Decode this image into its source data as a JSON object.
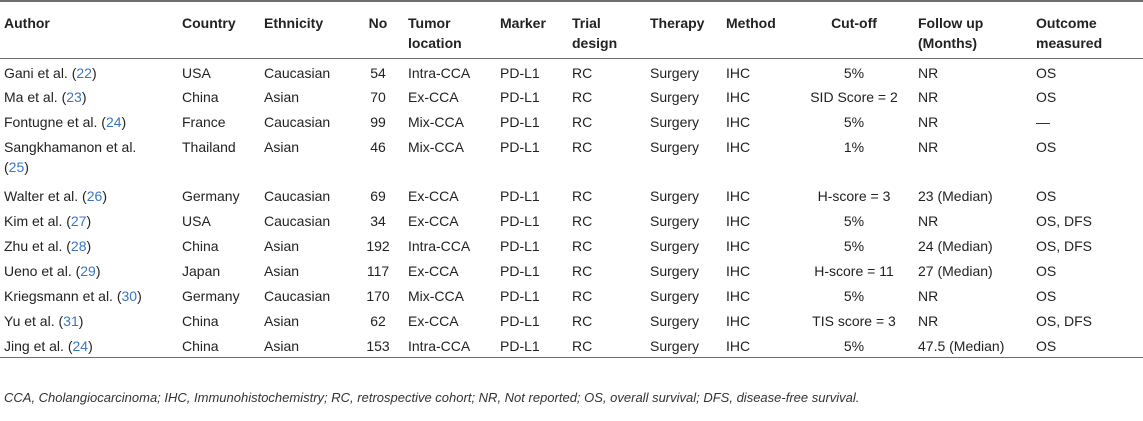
{
  "table": {
    "headers": [
      "Author",
      "Country",
      "Ethnicity",
      "No",
      "Tumor location",
      "Marker",
      "Trial design",
      "Therapy",
      "Method",
      "Cut-off",
      "Follow up (Months)",
      "Outcome measured"
    ],
    "rows": [
      {
        "author": "Gani et al. (",
        "ref": "22",
        "author_end": ")",
        "country": "USA",
        "ethnicity": "Caucasian",
        "no": "54",
        "location": "Intra-CCA",
        "marker": "PD-L1",
        "design": "RC",
        "therapy": "Surgery",
        "method": "IHC",
        "cutoff": "5%",
        "followup": "NR",
        "outcome": "OS"
      },
      {
        "author": "Ma et al. (",
        "ref": "23",
        "author_end": ")",
        "country": "China",
        "ethnicity": "Asian",
        "no": "70",
        "location": "Ex-CCA",
        "marker": "PD-L1",
        "design": "RC",
        "therapy": "Surgery",
        "method": "IHC",
        "cutoff": "SID Score = 2",
        "followup": "NR",
        "outcome": "OS"
      },
      {
        "author": "Fontugne et al. (",
        "ref": "24",
        "author_end": ")",
        "country": "France",
        "ethnicity": "Caucasian",
        "no": "99",
        "location": "Mix-CCA",
        "marker": "PD-L1",
        "design": "RC",
        "therapy": "Surgery",
        "method": "IHC",
        "cutoff": "5%",
        "followup": "NR",
        "outcome": "—"
      },
      {
        "author": "Sangkhamanon et al. (",
        "ref": "25",
        "author_end": ")",
        "country": "Thailand",
        "ethnicity": "Asian",
        "no": "46",
        "location": "Mix-CCA",
        "marker": "PD-L1",
        "design": "RC",
        "therapy": "Surgery",
        "method": "IHC",
        "cutoff": "1%",
        "followup": "NR",
        "outcome": "OS"
      },
      {
        "author": "Walter et al. (",
        "ref": "26",
        "author_end": ")",
        "country": "Germany",
        "ethnicity": "Caucasian",
        "no": "69",
        "location": "Ex-CCA",
        "marker": "PD-L1",
        "design": "RC",
        "therapy": "Surgery",
        "method": "IHC",
        "cutoff": "H-score = 3",
        "followup": "23 (Median)",
        "outcome": "OS"
      },
      {
        "author": "Kim et al. (",
        "ref": "27",
        "author_end": ")",
        "country": "USA",
        "ethnicity": "Caucasian",
        "no": "34",
        "location": "Ex-CCA",
        "marker": "PD-L1",
        "design": "RC",
        "therapy": "Surgery",
        "method": "IHC",
        "cutoff": "5%",
        "followup": "NR",
        "outcome": "OS, DFS"
      },
      {
        "author": "Zhu et al. (",
        "ref": "28",
        "author_end": ")",
        "country": "China",
        "ethnicity": "Asian",
        "no": "192",
        "location": "Intra-CCA",
        "marker": "PD-L1",
        "design": "RC",
        "therapy": "Surgery",
        "method": "IHC",
        "cutoff": "5%",
        "followup": "24 (Median)",
        "outcome": "OS, DFS"
      },
      {
        "author": "Ueno et al. (",
        "ref": "29",
        "author_end": ")",
        "country": "Japan",
        "ethnicity": "Asian",
        "no": "117",
        "location": "Ex-CCA",
        "marker": "PD-L1",
        "design": "RC",
        "therapy": "Surgery",
        "method": "IHC",
        "cutoff": "H-score = 11",
        "followup": "27 (Median)",
        "outcome": "OS"
      },
      {
        "author": "Kriegsmann et al. (",
        "ref": "30",
        "author_end": ")",
        "country": "Germany",
        "ethnicity": "Caucasian",
        "no": "170",
        "location": "Mix-CCA",
        "marker": "PD-L1",
        "design": "RC",
        "therapy": "Surgery",
        "method": "IHC",
        "cutoff": "5%",
        "followup": "NR",
        "outcome": "OS"
      },
      {
        "author": "Yu et al. (",
        "ref": "31",
        "author_end": ")",
        "country": "China",
        "ethnicity": "Asian",
        "no": "62",
        "location": "Ex-CCA",
        "marker": "PD-L1",
        "design": "RC",
        "therapy": "Surgery",
        "method": "IHC",
        "cutoff": "TIS score = 3",
        "followup": "NR",
        "outcome": "OS, DFS"
      },
      {
        "author": "Jing et al. (",
        "ref": "24",
        "author_end": ")",
        "country": "China",
        "ethnicity": "Asian",
        "no": "153",
        "location": "Intra-CCA",
        "marker": "PD-L1",
        "design": "RC",
        "therapy": "Surgery",
        "method": "IHC",
        "cutoff": "5%",
        "followup": "47.5 (Median)",
        "outcome": "OS"
      }
    ]
  },
  "footnote": "CCA, Cholangiocarcinoma; IHC, Immunohistochemistry; RC, retrospective cohort; NR, Not reported; OS, overall survival; DFS, disease-free survival.",
  "colors": {
    "reference_link": "#3a76c4",
    "rule": "#6e6e6e",
    "text": "#222222"
  }
}
